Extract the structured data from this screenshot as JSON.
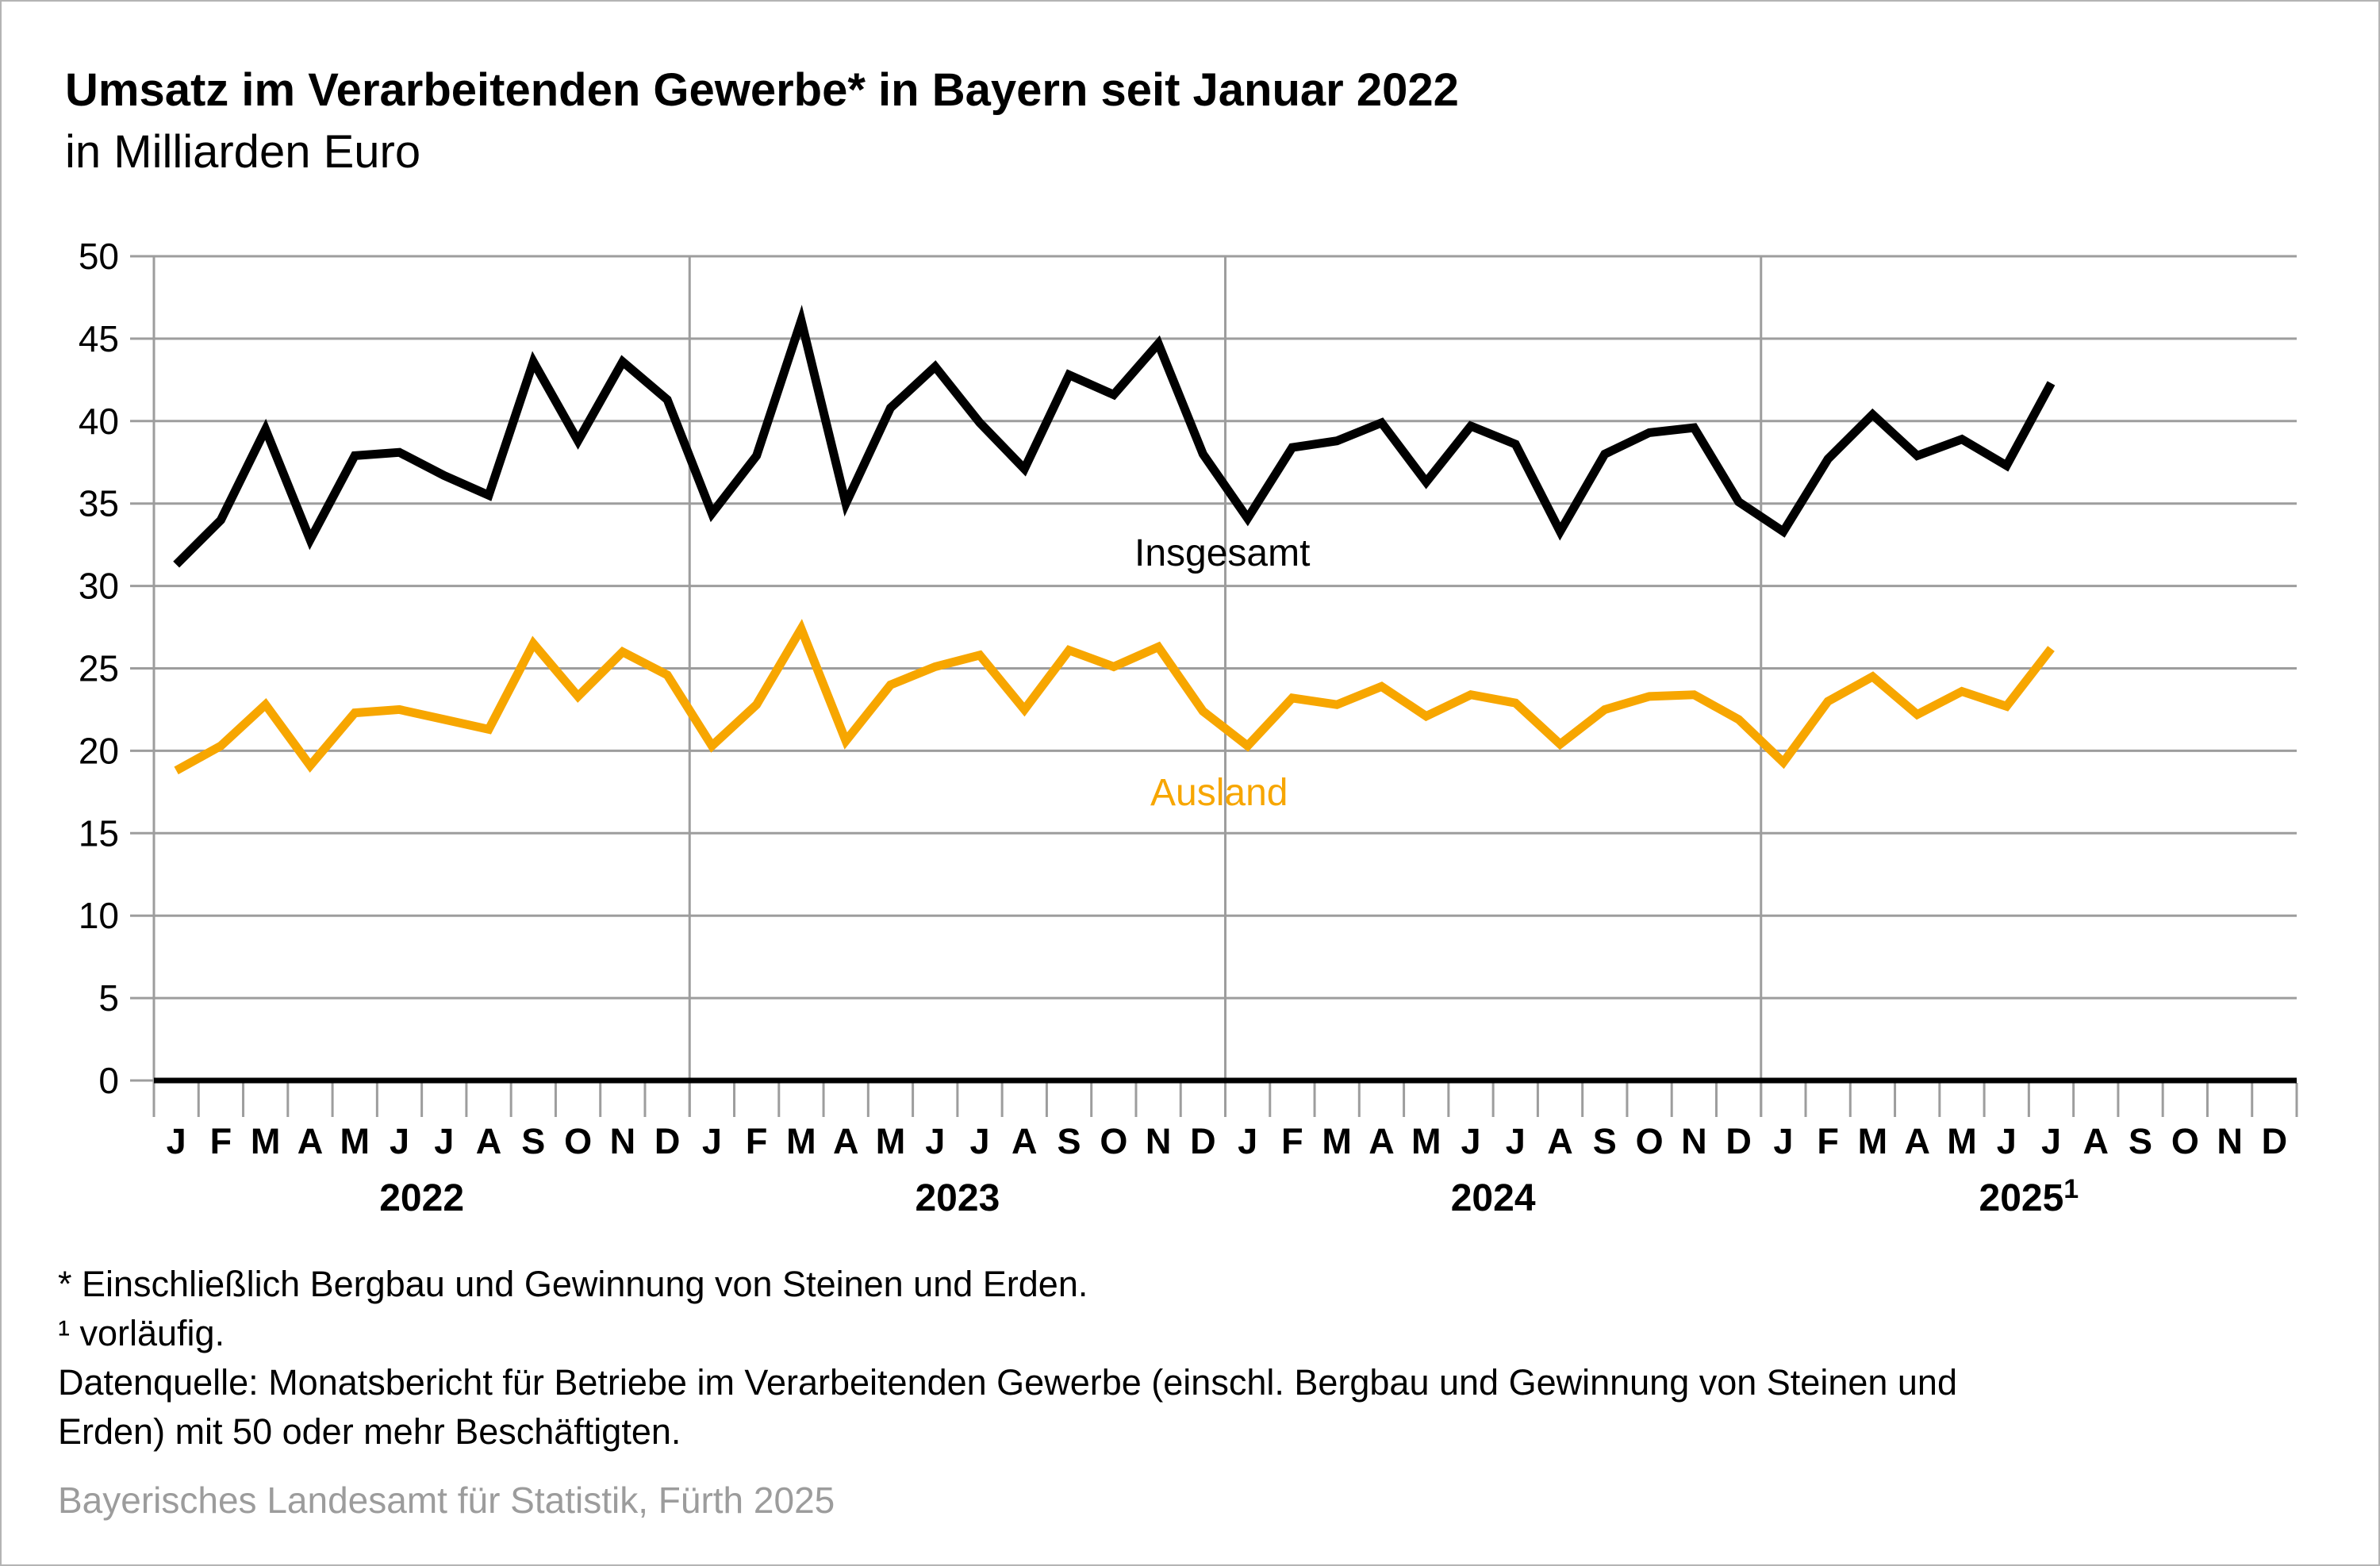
{
  "header": {
    "title": "Umsatz im Verarbeitenden Gewerbe* in Bayern seit Januar 2022",
    "subtitle": "in Milliarden Euro"
  },
  "chart_data": {
    "type": "line",
    "title": "Umsatz im Verarbeitenden Gewerbe* in Bayern seit Januar 2022",
    "subtitle_unit": "in Milliarden Euro",
    "ylim": [
      0,
      50
    ],
    "ytick_step": 5,
    "ytick_labels": [
      "0",
      "5",
      "10",
      "15",
      "20",
      "25",
      "30",
      "35",
      "40",
      "45",
      "50"
    ],
    "grid": {
      "horizontal": true,
      "year_separators": true
    },
    "legend_position": "inline-labels",
    "month_letters": [
      "J",
      "F",
      "M",
      "A",
      "M",
      "J",
      "J",
      "A",
      "S",
      "O",
      "N",
      "D"
    ],
    "years": [
      {
        "label": "2022"
      },
      {
        "label": "2023"
      },
      {
        "label": "2024"
      },
      {
        "label": "2025",
        "sup": "1"
      }
    ],
    "n_month_slots": 48,
    "series": [
      {
        "name": "Insgesamt",
        "color": "#000000",
        "start": "Januar 2022",
        "values": [
          31.3,
          34.0,
          39.5,
          32.8,
          37.9,
          38.1,
          36.7,
          35.5,
          43.6,
          38.8,
          43.6,
          41.3,
          34.4,
          37.9,
          46.1,
          35.0,
          40.8,
          43.3,
          39.9,
          37.1,
          42.8,
          41.6,
          44.7,
          38.0,
          34.1,
          38.4,
          38.8,
          39.9,
          36.3,
          39.7,
          38.6,
          33.3,
          38.0,
          39.3,
          39.6,
          35.1,
          33.3,
          37.7,
          40.4,
          37.9,
          38.9,
          37.3,
          42.3
        ]
      },
      {
        "name": "Ausland",
        "color": "#F7A600",
        "start": "Januar 2022",
        "values": [
          18.8,
          20.3,
          22.8,
          19.1,
          22.3,
          22.5,
          21.9,
          21.3,
          26.5,
          23.3,
          26.0,
          24.6,
          20.3,
          22.8,
          27.4,
          20.6,
          24.0,
          25.1,
          25.8,
          22.5,
          26.1,
          25.1,
          26.3,
          22.4,
          20.3,
          23.2,
          22.8,
          23.9,
          22.1,
          23.4,
          22.9,
          20.4,
          22.5,
          23.3,
          23.4,
          21.9,
          19.3,
          23.0,
          24.5,
          22.2,
          23.6,
          22.7,
          26.2
        ]
      }
    ]
  },
  "labels": {
    "insgesamt": "Insgesamt",
    "ausland": "Ausland"
  },
  "footnotes": {
    "lines": [
      "* Einschließlich Bergbau und Gewinnung von Steinen und Erden.",
      "¹  vorläufig.",
      "Datenquelle: Monatsbericht für Betriebe im Verarbeitenden Gewerbe (einschl. Bergbau und Gewinnung von Steinen und",
      "Erden) mit 50 oder mehr Beschäftigten."
    ]
  },
  "source": "Bayerisches Landesamt für Statistik, Fürth 2025",
  "style": {
    "grid_color": "#9d9d9d",
    "axis_color": "#000000",
    "source_color": "#9c9c9c"
  }
}
